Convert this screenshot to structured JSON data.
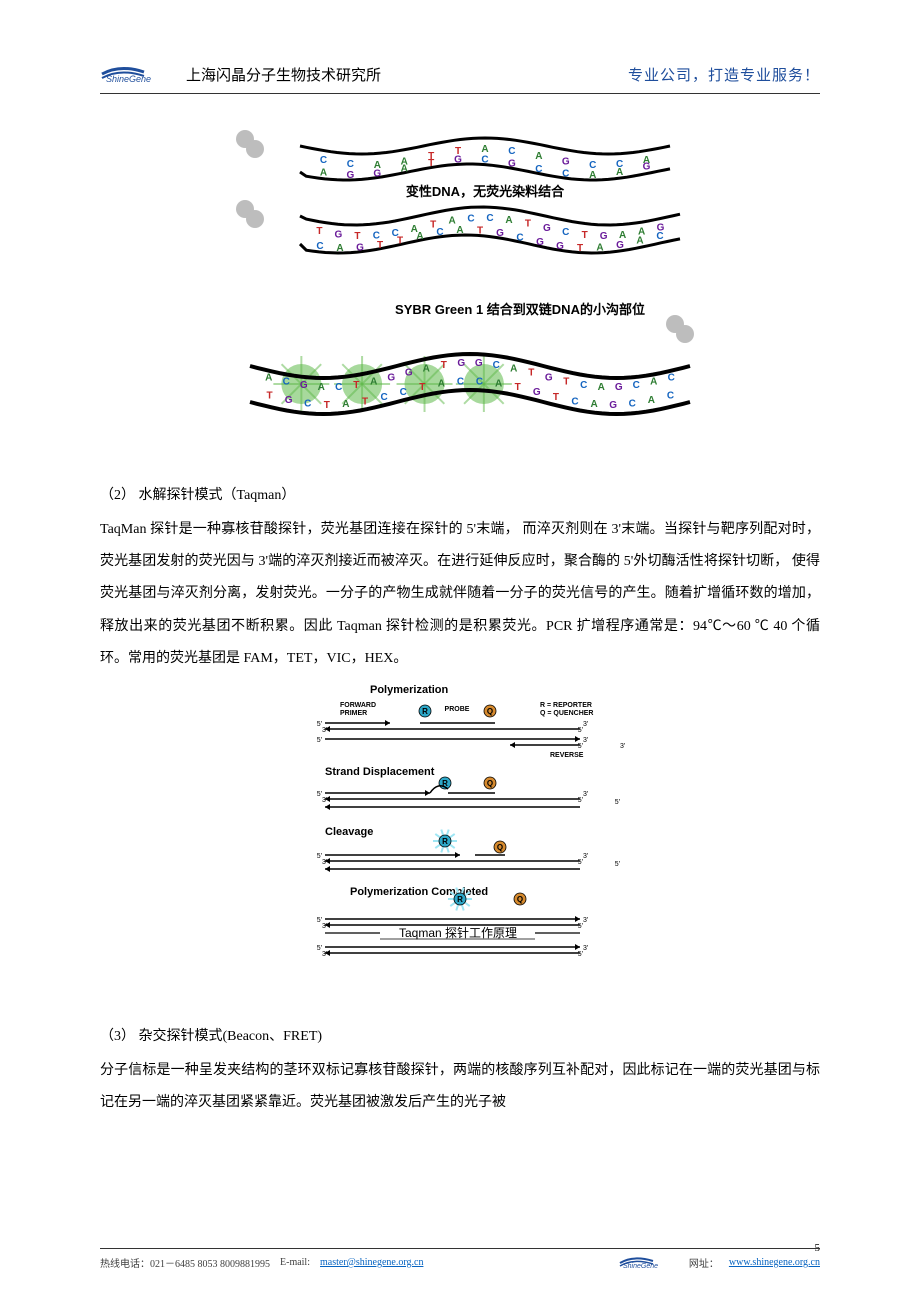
{
  "header": {
    "logo_text": "ShineGene",
    "left": "上海闪晶分子生物技术研究所",
    "right": "专业公司，打造专业服务！",
    "right_color": "#1f4e9c"
  },
  "sybr_diagram": {
    "caption1": "变性DNA，无荧光染料结合",
    "caption2": "SYBR Green 1 结合到双链DNA的小沟部位",
    "strand_color": "#000000",
    "dye_color": "#5fb94a",
    "dye_inactive_color": "#bdbdbd",
    "bases_top1": [
      "C",
      "C",
      "A",
      "A",
      "T",
      "T",
      "A",
      "C",
      "A",
      "G",
      "C",
      "C",
      "A"
    ],
    "bases_bot1": [
      "A",
      "G",
      "G",
      "A",
      "T",
      "G",
      "C",
      "G",
      "C",
      "C",
      "A",
      "A",
      "G"
    ],
    "bases_top2": [
      "T",
      "G",
      "T",
      "C",
      "C",
      "A",
      "T",
      "A",
      "C",
      "C",
      "A",
      "T",
      "G",
      "C",
      "T",
      "G",
      "A",
      "A",
      "G"
    ],
    "bases_bot2": [
      "C",
      "A",
      "G",
      "T",
      "T",
      "A",
      "C",
      "A",
      "T",
      "G",
      "C",
      "G",
      "G",
      "T",
      "A",
      "G",
      "A",
      "C"
    ],
    "ds_top": [
      "A",
      "C",
      "G",
      "A",
      "C",
      "T",
      "A",
      "G",
      "G",
      "A",
      "T",
      "G",
      "G",
      "C",
      "A",
      "T",
      "G",
      "T",
      "C",
      "A",
      "G",
      "C",
      "A",
      "C"
    ],
    "ds_bot": [
      "T",
      "G",
      "C",
      "T",
      "A",
      "T",
      "C",
      "C",
      "T",
      "A",
      "C",
      "C",
      "A",
      "T",
      "G",
      "T",
      "C",
      "A",
      "G",
      "C",
      "A",
      "C"
    ],
    "base_colors": {
      "A": "#2e7d32",
      "C": "#1565c0",
      "G": "#6a1b9a",
      "T": "#c62828"
    }
  },
  "section2": {
    "title": "（2） 水解探针模式（Taqman）",
    "body": "TaqMan 探针是一种寡核苷酸探针，荧光基团连接在探针的 5'末端， 而淬灭剂则在 3'末端。当探针与靶序列配对时，荧光基团发射的荧光因与 3'端的淬灭剂接近而被淬灭。在进行延伸反应时，聚合酶的 5'外切酶活性将探针切断， 使得荧光基团与淬灭剂分离，发射荧光。一分子的产物生成就伴随着一分子的荧光信号的产生。随着扩增循环数的增加，释放出来的荧光基团不断积累。因此 Taqman 探针检测的是积累荧光。PCR 扩增程序通常是：94℃～60 ℃  40 个循环。常用的荧光基团是 FAM，TET，VIC，HEX。"
  },
  "taqman_diagram": {
    "steps": [
      "Polymerization",
      "Strand Displacement",
      "Cleavage",
      "Polymerization Completed"
    ],
    "labels": {
      "forward_primer": "FORWARD\nPRIMER",
      "probe": "PROBE",
      "reverse_primer": "REVERSE\nPRIMER",
      "r_legend": "R = REPORTER",
      "q_legend": "Q = QUENCHER"
    },
    "caption": "Taqman 探针工作原理",
    "colors": {
      "reporter_fill": "#2da7c8",
      "reporter_glow": "#9fe6f4",
      "quencher_fill": "#d68a2e",
      "line_color": "#000000",
      "text_color": "#000000"
    },
    "end_labels": {
      "five": "5'",
      "three": "3'"
    },
    "font_sizes": {
      "step": 11,
      "label": 7,
      "end": 7
    }
  },
  "section3": {
    "title": "（3） 杂交探针模式(Beacon、FRET)",
    "body": "分子信标是一种呈发夹结构的茎环双标记寡核苷酸探针，两端的核酸序列互补配对，因此标记在一端的荧光基团与标记在另一端的淬灭基团紧紧靠近。荧光基团被激发后产生的光子被"
  },
  "footer": {
    "hotline": "热线电话：021－6485 8053  8009881995",
    "email_label": "E-mail:",
    "email": "master@shinegene.org.cn",
    "site_label": "网址：",
    "site": "www.shinegene.org.cn",
    "link_color": "#0563c1",
    "text_color": "#3f3f3f"
  },
  "page_number": "5"
}
